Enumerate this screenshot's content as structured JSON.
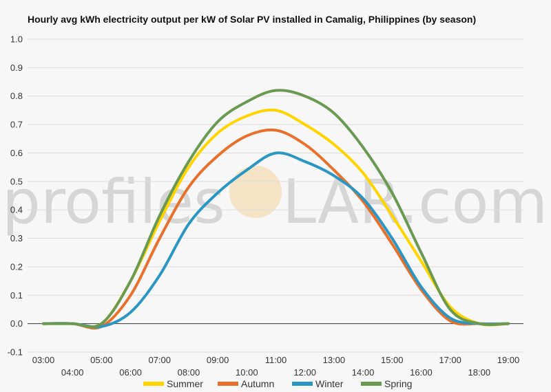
{
  "chart_data": {
    "type": "line",
    "title": "Hourly avg kWh electricity output per kW of Solar PV installed in Camalig, Philippines (by season)",
    "xlabel": "",
    "ylabel": "",
    "ylim": [
      -0.1,
      1.0
    ],
    "yticks": [
      "-0.1",
      "0.0",
      "0.1",
      "0.2",
      "0.3",
      "0.4",
      "0.5",
      "0.6",
      "0.7",
      "0.8",
      "0.9",
      "1.0"
    ],
    "xticks_upper": [
      "03:00",
      "05:00",
      "07:00",
      "09:00",
      "11:00",
      "13:00",
      "15:00",
      "17:00",
      "19:00"
    ],
    "xticks_lower": [
      "04:00",
      "06:00",
      "08:00",
      "10:00",
      "12:00",
      "14:00",
      "16:00",
      "18:00"
    ],
    "x": [
      3,
      4,
      5,
      6,
      7,
      8,
      9,
      10,
      11,
      12,
      13,
      14,
      15,
      16,
      17,
      18,
      19
    ],
    "grid": true,
    "legend_position": "bottom",
    "series": [
      {
        "name": "Summer",
        "color": "#ffd400",
        "values": [
          0.0,
          0.0,
          0.0,
          0.15,
          0.36,
          0.55,
          0.67,
          0.73,
          0.75,
          0.7,
          0.63,
          0.53,
          0.38,
          0.22,
          0.06,
          0.0,
          0.0
        ]
      },
      {
        "name": "Autumn",
        "color": "#e8702a",
        "values": [
          0.0,
          0.0,
          -0.01,
          0.1,
          0.3,
          0.48,
          0.59,
          0.66,
          0.68,
          0.63,
          0.54,
          0.43,
          0.28,
          0.12,
          0.01,
          0.0,
          0.0
        ]
      },
      {
        "name": "Winter",
        "color": "#2a96c4",
        "values": [
          0.0,
          0.0,
          -0.01,
          0.04,
          0.17,
          0.35,
          0.46,
          0.54,
          0.6,
          0.57,
          0.52,
          0.44,
          0.3,
          0.13,
          0.02,
          0.0,
          0.0
        ]
      },
      {
        "name": "Spring",
        "color": "#6a9a52",
        "values": [
          0.0,
          0.0,
          0.0,
          0.15,
          0.38,
          0.57,
          0.71,
          0.78,
          0.82,
          0.8,
          0.74,
          0.62,
          0.46,
          0.25,
          0.05,
          0.0,
          0.0
        ]
      }
    ]
  },
  "watermark": {
    "left": "profiles",
    "right": "LAR.com",
    "sun_color": "#f3d49a"
  }
}
